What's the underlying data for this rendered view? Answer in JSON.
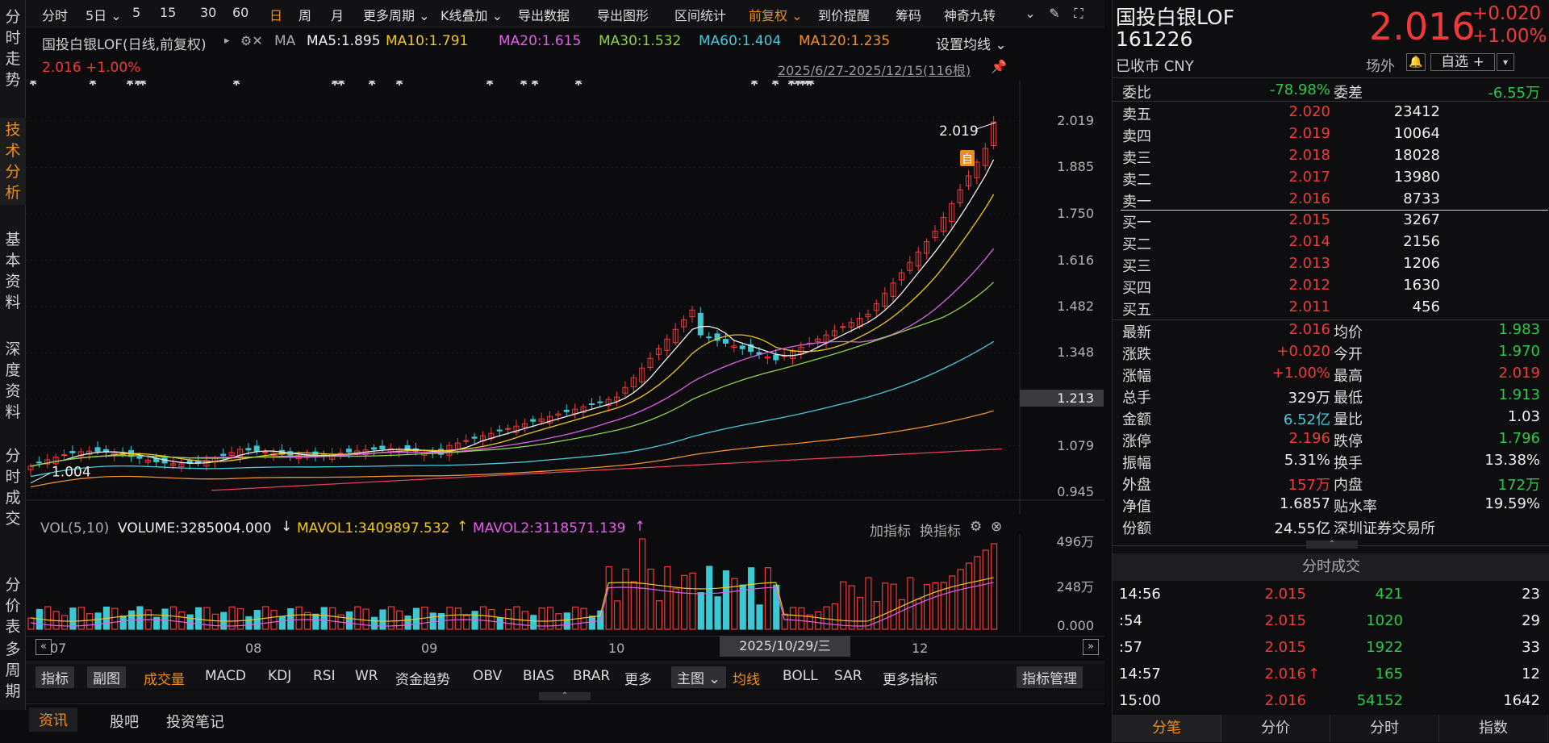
{
  "leftnav": [
    {
      "label": "分时走势",
      "active": false
    },
    {
      "label": "技术分析",
      "active": true
    },
    {
      "label": "基本资料",
      "active": false
    },
    {
      "label": "深度资料",
      "active": false
    },
    {
      "label": "分时成交",
      "active": false
    },
    {
      "label": "分价表",
      "active": false
    },
    {
      "label": "多周期",
      "active": false
    }
  ],
  "toolbar": {
    "items": [
      "分时",
      "5日 ⌄",
      "5",
      "15",
      "30",
      "60",
      "日",
      "周",
      "月",
      "更多周期 ⌄",
      "K线叠加 ⌄",
      "导出数据",
      "导出图形",
      "区间统计",
      "前复权 ⌄",
      "到价提醒",
      "筹码",
      "神奇九转"
    ],
    "active": "日",
    "active2": "前复权 ⌄"
  },
  "header": {
    "name": "国投白银LOF(日线,前复权)",
    "ma_label": "MA",
    "ma5": "MA5:1.895",
    "ma10": "MA10:1.791",
    "ma20": "MA20:1.615",
    "ma30": "MA30:1.532",
    "ma60": "MA60:1.404",
    "ma120": "MA120:1.235",
    "settings": "设置均线 ⌄",
    "price_change": "2.016 +1.00%",
    "range": "2025/6/27-2025/12/15(116根)"
  },
  "chart_data": {
    "type": "candlestick",
    "y_ticks": [
      "2.019",
      "1.885",
      "1.750",
      "1.616",
      "1.482",
      "1.348",
      "1.213",
      "1.079",
      "0.945"
    ],
    "ylim": [
      0.945,
      2.019
    ],
    "x_ticks": [
      "07",
      "08",
      "09",
      "10",
      "12"
    ],
    "high_label": "2.019",
    "low_label": "1.004",
    "cursor_price": "1.213",
    "cursor_date": "2025/10/29/三",
    "marker": "自"
  },
  "volume": {
    "title": "VOL(5,10)",
    "volume": "VOLUME:3285004.000",
    "mavol1": "MAVOL1:3409897.532",
    "mavol2": "MAVOL2:3118571.139",
    "add_ind": "加指标",
    "switch_ind": "换指标",
    "y_ticks": [
      "496万",
      "248万",
      "0.000"
    ]
  },
  "indbar": {
    "items": [
      "指标",
      "副图",
      "成交量",
      "MACD",
      "KDJ",
      "RSI",
      "WR",
      "资金趋势",
      "OBV",
      "BIAS",
      "BRAR",
      "更多",
      "主图 ⌄",
      "均线",
      "BOLL",
      "SAR",
      "更多指标"
    ],
    "manage": "指标管理"
  },
  "newsbar": [
    "资讯",
    "股吧",
    "投资笔记"
  ],
  "quote": {
    "name": "国投白银LOF",
    "code": "161226",
    "status": "已收市 CNY",
    "price": "2.016",
    "change": "+0.020",
    "pct": "+1.00%",
    "market": "场外",
    "watch": "自选 +",
    "weibi_label": "委比",
    "weibi": "-78.98%",
    "weicha_label": "委差",
    "weicha": "-6.55万",
    "asks": [
      {
        "label": "卖五",
        "price": "2.020",
        "vol": "23412"
      },
      {
        "label": "卖四",
        "price": "2.019",
        "vol": "10064"
      },
      {
        "label": "卖三",
        "price": "2.018",
        "vol": "18028"
      },
      {
        "label": "卖二",
        "price": "2.017",
        "vol": "13980"
      },
      {
        "label": "卖一",
        "price": "2.016",
        "vol": "8733"
      }
    ],
    "bids": [
      {
        "label": "买一",
        "price": "2.015",
        "vol": "3267"
      },
      {
        "label": "买二",
        "price": "2.014",
        "vol": "2156"
      },
      {
        "label": "买三",
        "price": "2.013",
        "vol": "1206"
      },
      {
        "label": "买四",
        "price": "2.012",
        "vol": "1630"
      },
      {
        "label": "买五",
        "price": "2.011",
        "vol": "456"
      }
    ],
    "stats": [
      {
        "l1": "最新",
        "v1": "2.016",
        "c1": "red",
        "l2": "均价",
        "v2": "1.983",
        "c2": "green"
      },
      {
        "l1": "涨跌",
        "v1": "+0.020",
        "c1": "red",
        "l2": "今开",
        "v2": "1.970",
        "c2": "green"
      },
      {
        "l1": "涨幅",
        "v1": "+1.00%",
        "c1": "red",
        "l2": "最高",
        "v2": "2.019",
        "c2": "red"
      },
      {
        "l1": "总手",
        "v1": "329万",
        "c1": "white",
        "l2": "最低",
        "v2": "1.913",
        "c2": "green"
      },
      {
        "l1": "金额",
        "v1": "6.52亿",
        "c1": "cyan",
        "l2": "量比",
        "v2": "1.03",
        "c2": "white"
      },
      {
        "l1": "涨停",
        "v1": "2.196",
        "c1": "red",
        "l2": "跌停",
        "v2": "1.796",
        "c2": "green"
      },
      {
        "l1": "振幅",
        "v1": "5.31%",
        "c1": "white",
        "l2": "换手",
        "v2": "13.38%",
        "c2": "white"
      },
      {
        "l1": "外盘",
        "v1": "157万",
        "c1": "red",
        "l2": "内盘",
        "v2": "172万",
        "c2": "green"
      },
      {
        "l1": "净值",
        "v1": "1.6857",
        "c1": "white",
        "l2": "贴水率",
        "v2": "19.59%",
        "c2": "white"
      },
      {
        "l1": "份额",
        "v1": "24.55亿",
        "c1": "white",
        "l2": "深圳证券交易所",
        "v2": "",
        "c2": "white"
      }
    ],
    "ticks_title": "分时成交",
    "ticks": [
      {
        "time": "14:56",
        "price": "2.015",
        "vol": "421",
        "n": "23",
        "arrow": ""
      },
      {
        "time": ":54",
        "price": "2.015",
        "vol": "1020",
        "n": "29",
        "arrow": ""
      },
      {
        "time": ":57",
        "price": "2.015",
        "vol": "1922",
        "n": "33",
        "arrow": ""
      },
      {
        "time": "14:57",
        "price": "2.016",
        "vol": "165",
        "n": "12",
        "arrow": "↑"
      },
      {
        "time": "15:00",
        "price": "2.016",
        "vol": "54152",
        "n": "1642",
        "arrow": ""
      }
    ],
    "bottom_tabs": [
      "分笔",
      "分价",
      "分时",
      "指数"
    ]
  },
  "colors": {
    "up": "#f03a3a",
    "down": "#3cc8d2",
    "accent": "#f08c1e"
  }
}
